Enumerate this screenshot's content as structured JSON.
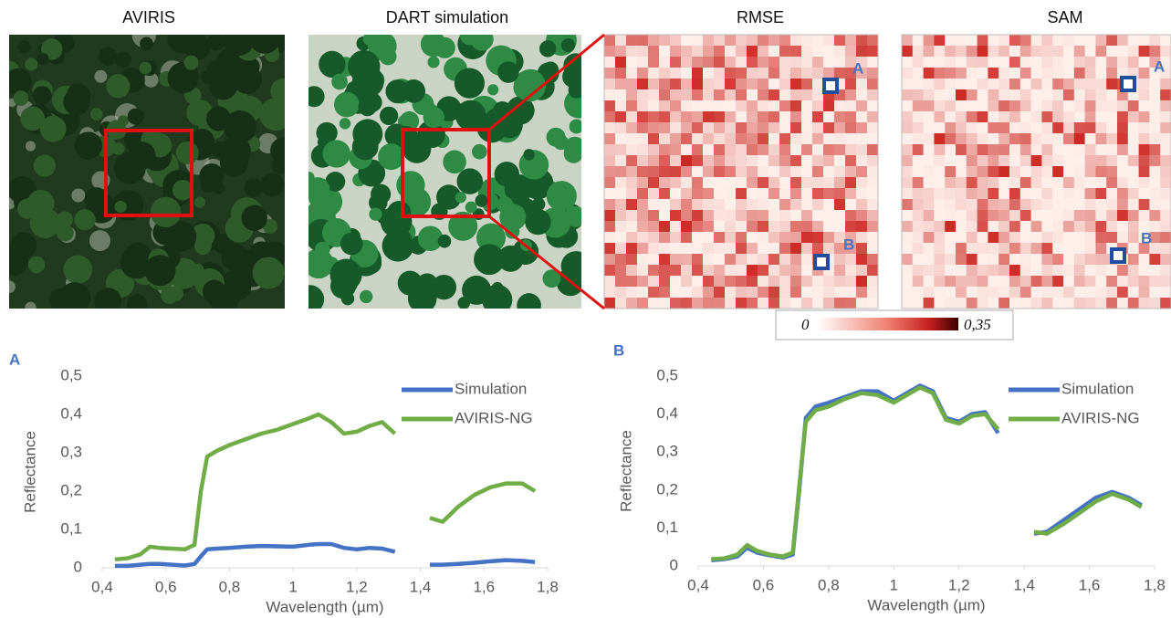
{
  "panels": [
    {
      "title": "AVIRIS"
    },
    {
      "title": "DART simulation"
    },
    {
      "title": "RMSE",
      "markers": [
        "A",
        "B"
      ]
    },
    {
      "title": "SAM",
      "markers": [
        "A",
        "B"
      ]
    }
  ],
  "colorbar": {
    "min_label": "0",
    "max_label": "0,35"
  },
  "chart_data": [
    {
      "type": "line",
      "panel_label": "A",
      "x_label": "Wavelength (µm)",
      "y_label": "Reflectance",
      "x": [
        0.44,
        0.48,
        0.52,
        0.55,
        0.58,
        0.62,
        0.66,
        0.69,
        0.71,
        0.73,
        0.76,
        0.8,
        0.85,
        0.9,
        0.95,
        1.0,
        1.05,
        1.08,
        1.12,
        1.16,
        1.2,
        1.24,
        1.28,
        1.32,
        1.38,
        1.43,
        1.47,
        1.52,
        1.57,
        1.62,
        1.67,
        1.72,
        1.76
      ],
      "series": [
        {
          "name": "Simulation",
          "color": "#4472c4",
          "values": [
            0.005,
            0.005,
            0.008,
            0.01,
            0.01,
            0.008,
            0.006,
            0.01,
            0.03,
            0.048,
            0.05,
            0.052,
            0.055,
            0.057,
            0.056,
            0.055,
            0.06,
            0.062,
            0.062,
            0.052,
            0.048,
            0.052,
            0.05,
            0.042,
            null,
            0.008,
            0.008,
            0.01,
            0.013,
            0.017,
            0.02,
            0.018,
            0.015
          ]
        },
        {
          "name": "AVIRIS-NG",
          "color": "#70ad47",
          "values": [
            0.022,
            0.025,
            0.035,
            0.055,
            0.052,
            0.05,
            0.048,
            0.06,
            0.2,
            0.29,
            0.305,
            0.32,
            0.335,
            0.35,
            0.36,
            0.375,
            0.39,
            0.4,
            0.38,
            0.35,
            0.355,
            0.37,
            0.38,
            0.35,
            null,
            0.13,
            0.12,
            0.16,
            0.19,
            0.21,
            0.22,
            0.22,
            0.2
          ]
        }
      ],
      "xlim": [
        0.4,
        1.8
      ],
      "xticks": [
        {
          "value": 0.4,
          "label": "0,4"
        },
        {
          "value": 0.6,
          "label": "0,6"
        },
        {
          "value": 0.8,
          "label": "0,8"
        },
        1,
        {
          "value": 1.2,
          "label": "1,2"
        },
        {
          "value": 1.4,
          "label": "1,4"
        },
        {
          "value": 1.6,
          "label": "1,6"
        },
        {
          "value": 1.8,
          "label": "1,8"
        }
      ],
      "ylim": [
        0,
        0.5
      ],
      "yticks": [
        0,
        {
          "value": 0.1,
          "label": "0,1"
        },
        {
          "value": 0.2,
          "label": "0,2"
        },
        {
          "value": 0.3,
          "label": "0,3"
        },
        {
          "value": 0.4,
          "label": "0,4"
        },
        {
          "value": 0.5,
          "label": "0,5"
        }
      ],
      "legend": "top-right"
    },
    {
      "type": "line",
      "panel_label": "B",
      "x_label": "Wavelength (µm)",
      "y_label": "Reflectance",
      "x": [
        0.44,
        0.48,
        0.52,
        0.55,
        0.58,
        0.62,
        0.66,
        0.69,
        0.71,
        0.73,
        0.76,
        0.8,
        0.85,
        0.9,
        0.95,
        1.0,
        1.05,
        1.08,
        1.12,
        1.16,
        1.2,
        1.24,
        1.28,
        1.32,
        1.38,
        1.43,
        1.47,
        1.52,
        1.57,
        1.62,
        1.67,
        1.72,
        1.76
      ],
      "series": [
        {
          "name": "Simulation",
          "color": "#4472c4",
          "values": [
            0.015,
            0.018,
            0.025,
            0.048,
            0.035,
            0.028,
            0.022,
            0.03,
            0.2,
            0.39,
            0.42,
            0.43,
            0.445,
            0.46,
            0.46,
            0.435,
            0.46,
            0.475,
            0.46,
            0.39,
            0.38,
            0.4,
            0.405,
            0.35,
            null,
            0.085,
            0.09,
            0.12,
            0.15,
            0.18,
            0.195,
            0.18,
            0.16
          ]
        },
        {
          "name": "AVIRIS-NG",
          "color": "#70ad47",
          "values": [
            0.018,
            0.02,
            0.03,
            0.055,
            0.04,
            0.03,
            0.025,
            0.035,
            0.21,
            0.38,
            0.41,
            0.42,
            0.44,
            0.455,
            0.45,
            0.43,
            0.455,
            0.47,
            0.455,
            0.385,
            0.375,
            0.395,
            0.4,
            0.36,
            null,
            0.09,
            0.085,
            0.11,
            0.14,
            0.17,
            0.19,
            0.175,
            0.155
          ]
        }
      ],
      "xlim": [
        0.4,
        1.8
      ],
      "xticks": [
        {
          "value": 0.4,
          "label": "0,4"
        },
        {
          "value": 0.6,
          "label": "0,6"
        },
        {
          "value": 0.8,
          "label": "0,8"
        },
        1,
        {
          "value": 1.2,
          "label": "1,2"
        },
        {
          "value": 1.4,
          "label": "1,4"
        },
        {
          "value": 1.6,
          "label": "1,6"
        },
        {
          "value": 1.8,
          "label": "1,8"
        }
      ],
      "ylim": [
        0,
        0.5
      ],
      "yticks": [
        0,
        {
          "value": 0.1,
          "label": "0,1"
        },
        {
          "value": 0.2,
          "label": "0,2"
        },
        {
          "value": 0.3,
          "label": "0,3"
        },
        {
          "value": 0.4,
          "label": "0,4"
        },
        {
          "value": 0.5,
          "label": "0,5"
        }
      ],
      "legend": "top-right"
    }
  ]
}
